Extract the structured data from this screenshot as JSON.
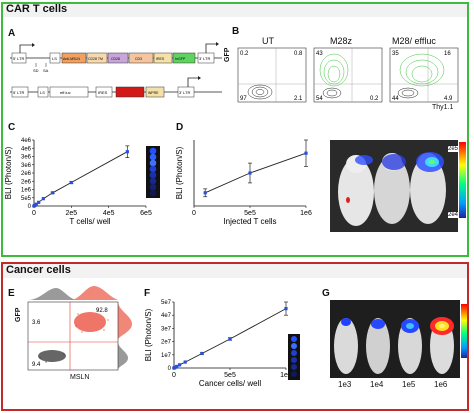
{
  "colors": {
    "car_border": "#3dbb3d",
    "cancer_border": "#c22a2a",
    "header_bg": "#f2f2f2",
    "plot_line": "#222222",
    "plot_marker": "#2b4fd8",
    "gfp_contour": "#3cc43c",
    "ut_contour": "#222222",
    "flow_red": "#e83a2a",
    "flow_hist_gray": "#888888",
    "flow_hist_red": "#f07a6a"
  },
  "car": {
    "title": "CAR T cells",
    "panel_a": {
      "letter": "A",
      "construct1": [
        "5' LTR",
        "LS",
        "Anti-MSLN",
        "CD28 TM",
        "CD28",
        "CD3",
        "IRES",
        "hrGFP",
        "3' LTR"
      ],
      "sd": "SD",
      "sa": "SA",
      "construct2": [
        "5' LTR",
        "LS",
        "eff.luc",
        "IRES",
        "WPRE",
        "3' LTR"
      ]
    },
    "panel_b": {
      "letter": "B",
      "headers": [
        "UT",
        "M28z",
        "M28/ effluc"
      ],
      "ylabel": "GFP",
      "xlabel": "Thy1.1",
      "quadrants": [
        {
          "tl": "0.2",
          "tr": "0.8",
          "bl": "97",
          "br": "2.1"
        },
        {
          "tl": "43",
          "tr": "",
          "bl": "54",
          "br": "0.2"
        },
        {
          "tl": "35",
          "tr": "16",
          "bl": "44",
          "br": "4.9"
        }
      ]
    },
    "panel_c": {
      "letter": "C",
      "ylabel": "BLI (Photon/S)",
      "xlabel": "T cells/ well",
      "yticks": [
        "0",
        "5e5",
        "1e6",
        "2e6",
        "2e6",
        "3e6",
        "3e6",
        "4e6",
        "4e6"
      ],
      "xticks": [
        "0",
        "2e5",
        "4e5",
        "6e5"
      ]
    },
    "panel_d": {
      "letter": "D",
      "ylabel": "BLI (Photon/S)",
      "xlabel": "Injected T cells",
      "xticks": [
        "0",
        "5e5",
        "1e6"
      ]
    },
    "panel_img": {
      "scale_top": "2e5",
      "scale_bottom": "2e4"
    }
  },
  "cancer": {
    "title": "Cancer cells",
    "panel_e": {
      "letter": "E",
      "ylabel": "GFP",
      "xlabel": "MSLN",
      "q_tl": "3.6",
      "q_tr": "92.8",
      "q_bl": "9.4"
    },
    "panel_f": {
      "letter": "F",
      "ylabel": "BLI (Photon/S)",
      "xlabel": "Cancer cells/ well",
      "yticks": [
        "0",
        "1e7",
        "2e7",
        "3e7",
        "4e7",
        "5e7"
      ],
      "xticks": [
        "0",
        "5e5",
        "1e6"
      ]
    },
    "panel_g": {
      "letter": "G",
      "mice": [
        "1e3",
        "1e4",
        "1e5",
        "1e6"
      ]
    }
  },
  "chart_data": [
    {
      "type": "line",
      "panel": "C",
      "xlabel": "T cells/ well",
      "ylabel": "BLI (Photon/S)",
      "xlim": [
        0,
        600000
      ],
      "ylim": [
        0,
        4500000
      ],
      "x": [
        0,
        3000,
        6000,
        12000,
        25000,
        50000,
        100000,
        200000,
        500000
      ],
      "y": [
        0,
        30000,
        60000,
        120000,
        250000,
        500000,
        900000,
        1600000,
        3700000
      ],
      "errors": [
        0,
        0,
        0,
        0,
        0,
        0,
        50000,
        80000,
        400000
      ]
    },
    {
      "type": "line",
      "panel": "D",
      "xlabel": "Injected T cells",
      "ylabel": "BLI (Photon/S)",
      "xlim": [
        0,
        1000000
      ],
      "x": [
        100000,
        500000,
        1000000
      ],
      "y": [
        0.2,
        0.5,
        0.8
      ],
      "errors": [
        0.06,
        0.15,
        0.2
      ]
    },
    {
      "type": "line",
      "panel": "F",
      "xlabel": "Cancer cells/ well",
      "ylabel": "BLI (Photon/S)",
      "xlim": [
        0,
        1000000
      ],
      "ylim": [
        0,
        50000000
      ],
      "x": [
        0,
        3000,
        6000,
        12000,
        25000,
        50000,
        100000,
        250000,
        500000,
        1000000
      ],
      "y": [
        0,
        150000,
        300000,
        600000,
        1200000,
        2400000,
        4500000,
        11000000,
        22000000,
        45000000
      ],
      "errors": [
        0,
        0,
        0,
        0,
        0,
        0,
        0,
        500000,
        1000000,
        5000000
      ]
    }
  ]
}
